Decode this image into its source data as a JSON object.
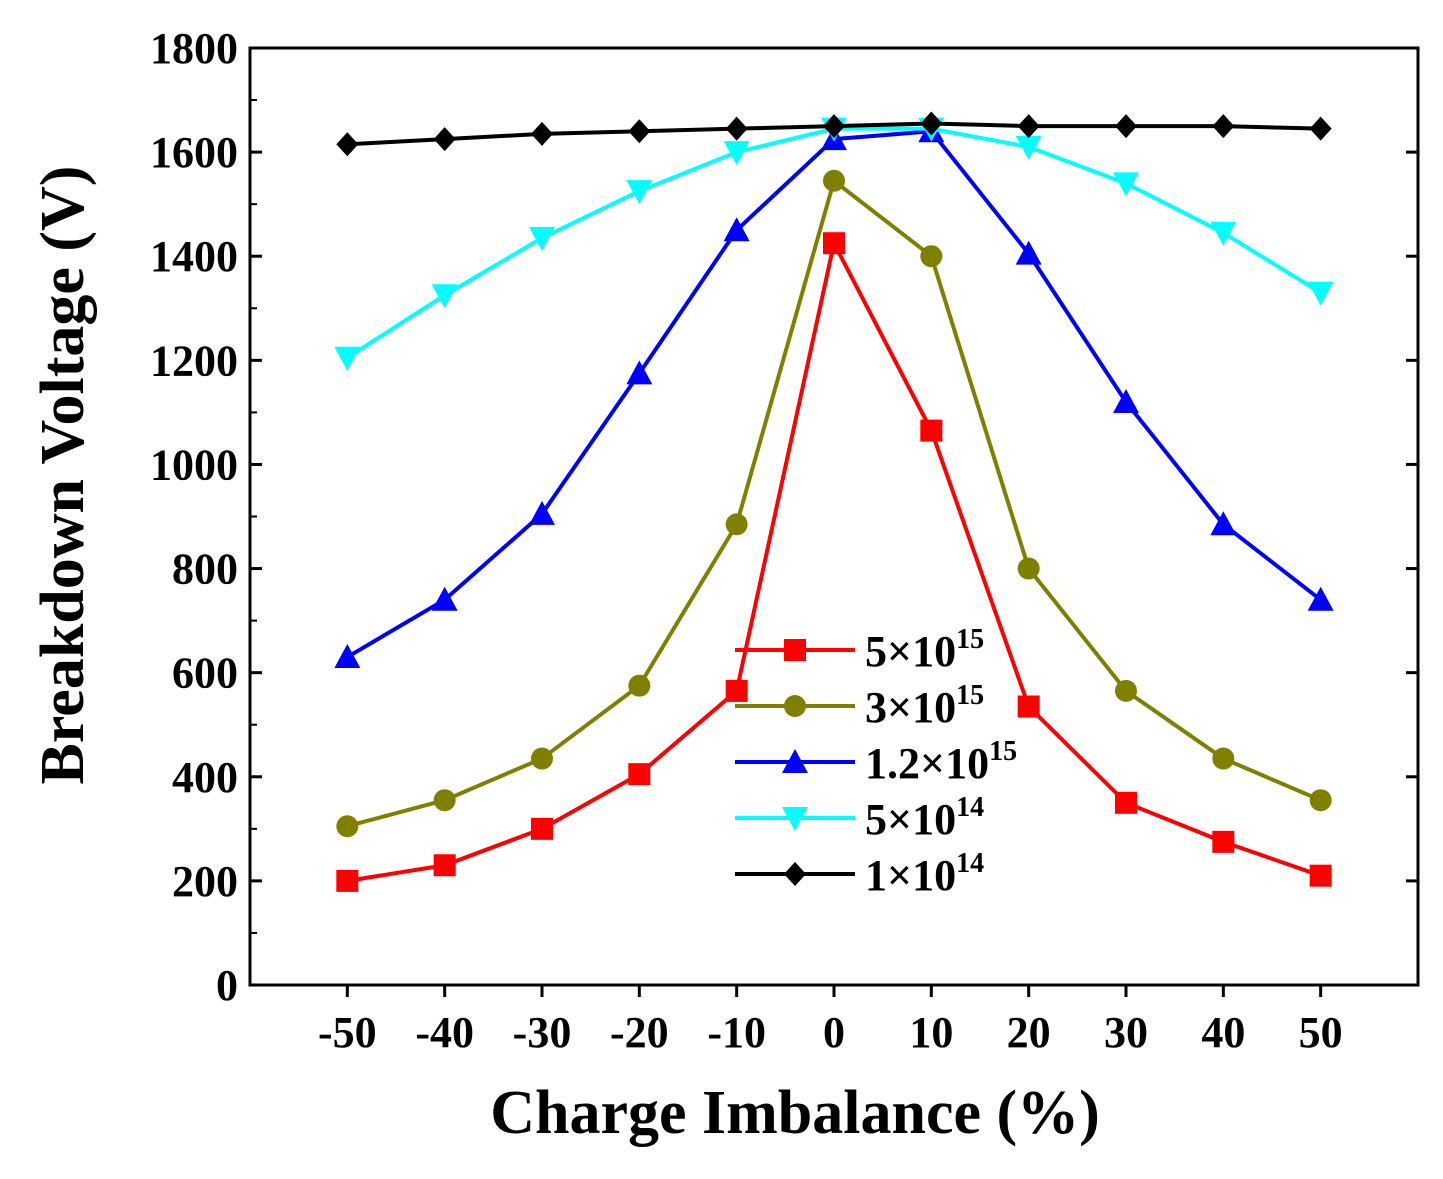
{
  "chart_data": {
    "type": "line",
    "xlabel": "Charge Imbalance (%)",
    "ylabel": "Breakdown Voltage (V)",
    "xlim": [
      -60,
      60
    ],
    "ylim": [
      0,
      1800
    ],
    "x": [
      -50,
      -40,
      -30,
      -20,
      -10,
      0,
      10,
      20,
      30,
      40,
      50
    ],
    "x_ticks": [
      "-50",
      "-40",
      "-30",
      "-20",
      "-10",
      "0",
      "10",
      "20",
      "30",
      "40",
      "50"
    ],
    "y_ticks": [
      "0",
      "200",
      "400",
      "600",
      "800",
      "1000",
      "1200",
      "1400",
      "1600",
      "1800"
    ],
    "grid": false,
    "legend_position": "center-bottom",
    "series": [
      {
        "name_base": "5×10",
        "name_exp": "15",
        "color": "#ff0000",
        "marker": "square",
        "values": [
          200,
          230,
          300,
          405,
          565,
          1425,
          1065,
          535,
          350,
          275,
          210
        ]
      },
      {
        "name_base": "3×10",
        "name_exp": "15",
        "color": "#808000",
        "marker": "circle",
        "values": [
          305,
          355,
          435,
          575,
          885,
          1545,
          1400,
          800,
          565,
          435,
          355
        ]
      },
      {
        "name_base": "1.2×10",
        "name_exp": "15",
        "color": "#0000ff",
        "marker": "triangle-up",
        "values": [
          630,
          740,
          905,
          1175,
          1450,
          1625,
          1640,
          1405,
          1120,
          885,
          740
        ]
      },
      {
        "name_base": "5×10",
        "name_exp": "14",
        "color": "#00ffff",
        "marker": "triangle-down",
        "values": [
          1205,
          1325,
          1435,
          1525,
          1600,
          1645,
          1645,
          1610,
          1540,
          1445,
          1330
        ]
      },
      {
        "name_base": "1×10",
        "name_exp": "14",
        "color": "#000000",
        "marker": "diamond",
        "values": [
          1615,
          1625,
          1635,
          1640,
          1645,
          1650,
          1655,
          1650,
          1650,
          1650,
          1645
        ]
      }
    ]
  }
}
